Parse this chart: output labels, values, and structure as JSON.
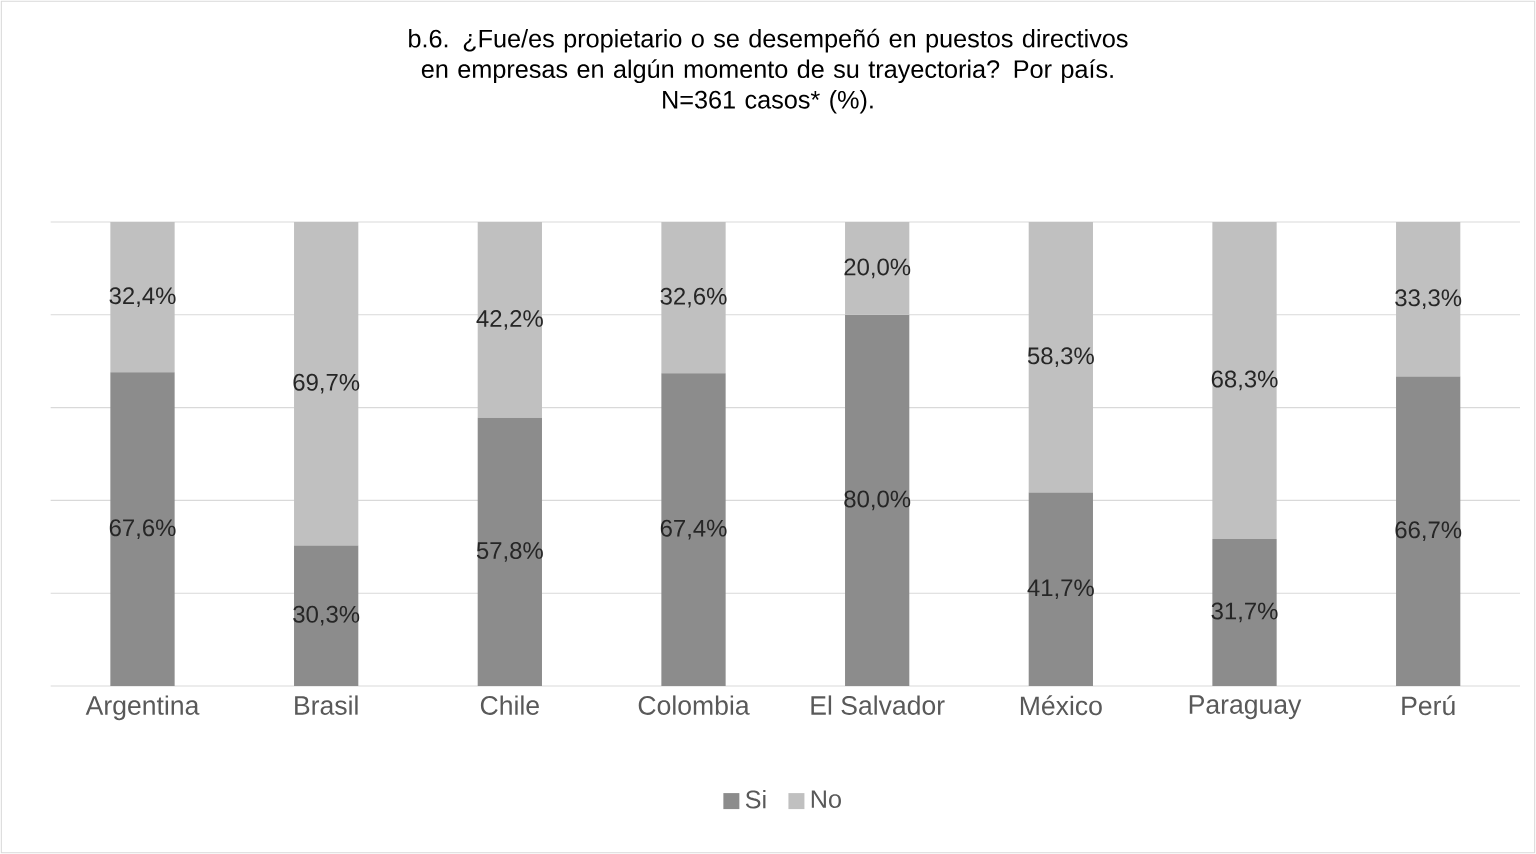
{
  "chart_data": {
    "type": "bar",
    "stacked": true,
    "title": "b.6. ¿Fue/es propietario o se desempeñó en puestos directivos en empresas en algún momento de su trayectoria? Por país.",
    "subtitle": "N=361 casos* (%).",
    "categories": [
      "Argentina",
      "Brasil",
      "Chile",
      "Colombia",
      "El Salvador",
      "México",
      "Paraguay",
      "Perú"
    ],
    "series": [
      {
        "name": "Si",
        "color": "#8c8c8c",
        "values": [
          67.6,
          30.3,
          57.8,
          67.4,
          80.0,
          41.7,
          31.7,
          66.7
        ],
        "value_labels": [
          "67,6%",
          "30,3%",
          "57,8%",
          "67,4%",
          "80,0%",
          "41,7%",
          "31,7%",
          "66,7%"
        ]
      },
      {
        "name": "No",
        "color": "#c0c0c0",
        "values": [
          32.4,
          69.7,
          42.2,
          32.6,
          20.0,
          58.3,
          68.3,
          33.3
        ],
        "value_labels": [
          "32,4%",
          "69,7%",
          "42,2%",
          "32,6%",
          "20,0%",
          "58,3%",
          "68,3%",
          "33,3%"
        ]
      }
    ],
    "ylim": [
      0,
      100
    ],
    "yticks": [
      {
        "value": 0,
        "label": null
      },
      {
        "value": 20,
        "label": null
      },
      {
        "value": 40,
        "label": null
      },
      {
        "value": 60,
        "label": null
      },
      {
        "value": 80,
        "label": null
      },
      {
        "value": 100,
        "label": null
      }
    ],
    "tick_labels": "x",
    "grid": "y",
    "legend": "bottom"
  }
}
